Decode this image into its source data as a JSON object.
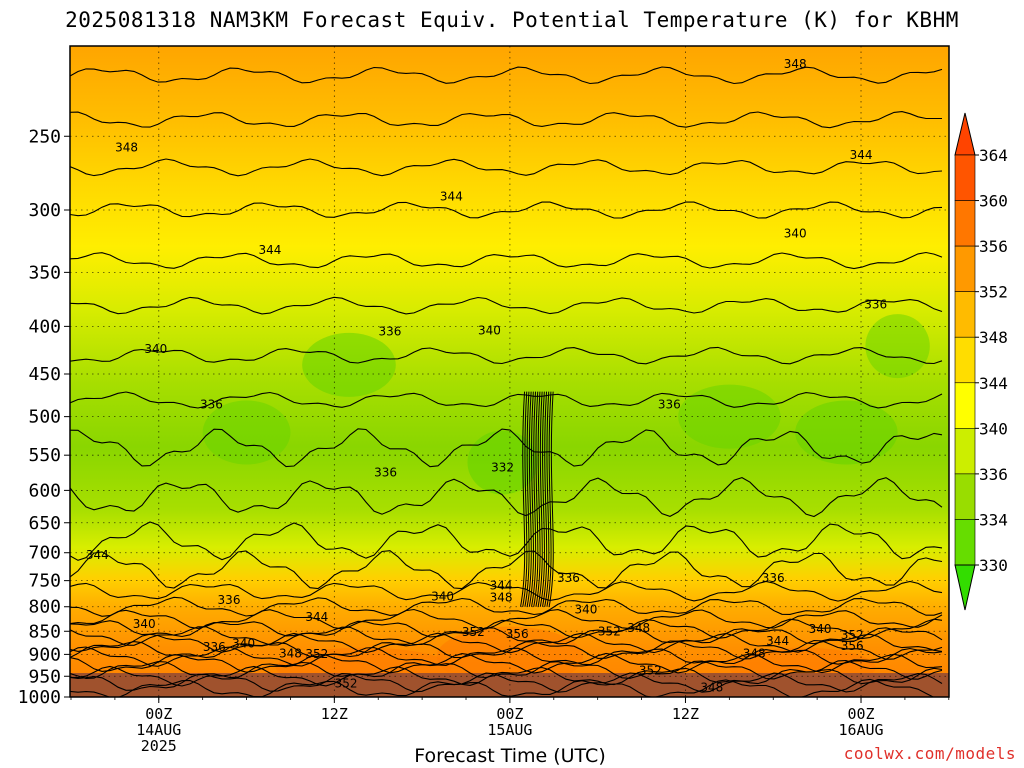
{
  "title": "2025081318 NAM3KM Forecast Equiv. Potential Temperature (K) for KBHM",
  "credit": "coolwx.com/models",
  "chart_data": {
    "type": "heatmap",
    "title": "2025081318 NAM3KM Forecast Equiv. Potential Temperature (K) for KBHM",
    "xlabel": "Forecast Time (UTC)",
    "ylabel": "",
    "y_scale": "pressure (top 200 to bottom 1000, log)",
    "yticks": [
      250,
      300,
      350,
      400,
      450,
      500,
      550,
      600,
      650,
      700,
      750,
      800,
      850,
      900,
      950,
      1000
    ],
    "xticks": [
      {
        "hour": 6,
        "lines": [
          "00Z",
          "14AUG",
          "2025"
        ]
      },
      {
        "hour": 18,
        "lines": [
          "12Z"
        ]
      },
      {
        "hour": 30,
        "lines": [
          "00Z",
          "15AUG"
        ]
      },
      {
        "hour": 42,
        "lines": [
          "12Z"
        ]
      },
      {
        "hour": 54,
        "lines": [
          "00Z",
          "16AUG"
        ]
      }
    ],
    "x_range_hours": [
      0,
      60
    ],
    "grid": true,
    "colorbar": {
      "levels": [
        330,
        334,
        336,
        340,
        344,
        348,
        352,
        356,
        360,
        364
      ],
      "colors": [
        "#33dd00",
        "#66dd00",
        "#99dd00",
        "#ccee00",
        "#ffff00",
        "#ffdd00",
        "#ffbb00",
        "#ff9900",
        "#ff7700",
        "#ff5500"
      ]
    },
    "contour_labels": [
      {
        "hour": 49.5,
        "p": 209,
        "text": "348"
      },
      {
        "hour": 3.8,
        "p": 257,
        "text": "348"
      },
      {
        "hour": 54,
        "p": 262,
        "text": "344"
      },
      {
        "hour": 26,
        "p": 290,
        "text": "344"
      },
      {
        "hour": 49.5,
        "p": 318,
        "text": "340"
      },
      {
        "hour": 13.6,
        "p": 331,
        "text": "344"
      },
      {
        "hour": 55,
        "p": 379,
        "text": "336"
      },
      {
        "hour": 21.8,
        "p": 405,
        "text": "336"
      },
      {
        "hour": 28.6,
        "p": 404,
        "text": "340"
      },
      {
        "hour": 5.8,
        "p": 423,
        "text": "340"
      },
      {
        "hour": 9.6,
        "p": 485,
        "text": "336"
      },
      {
        "hour": 40.9,
        "p": 485,
        "text": "336"
      },
      {
        "hour": 21.5,
        "p": 574,
        "text": "336"
      },
      {
        "hour": 29.5,
        "p": 567,
        "text": "332"
      },
      {
        "hour": 1.8,
        "p": 704,
        "text": "344"
      },
      {
        "hour": 34,
        "p": 745,
        "text": "336"
      },
      {
        "hour": 48,
        "p": 745,
        "text": "336"
      },
      {
        "hour": 29.4,
        "p": 759,
        "text": "344"
      },
      {
        "hour": 25.4,
        "p": 780,
        "text": "340"
      },
      {
        "hour": 29.4,
        "p": 782,
        "text": "348"
      },
      {
        "hour": 10.8,
        "p": 787,
        "text": "336"
      },
      {
        "hour": 16.8,
        "p": 821,
        "text": "344"
      },
      {
        "hour": 35.2,
        "p": 805,
        "text": "340"
      },
      {
        "hour": 5,
        "p": 835,
        "text": "340"
      },
      {
        "hour": 38.8,
        "p": 843,
        "text": "348"
      },
      {
        "hour": 27.5,
        "p": 852,
        "text": "352"
      },
      {
        "hour": 30.5,
        "p": 856,
        "text": "356"
      },
      {
        "hour": 36.8,
        "p": 850,
        "text": "352"
      },
      {
        "hour": 51.2,
        "p": 845,
        "text": "340"
      },
      {
        "hour": 53.4,
        "p": 858,
        "text": "352"
      },
      {
        "hour": 48.3,
        "p": 871,
        "text": "344"
      },
      {
        "hour": 53.4,
        "p": 881,
        "text": "356"
      },
      {
        "hour": 9.8,
        "p": 884,
        "text": "336"
      },
      {
        "hour": 11.8,
        "p": 876,
        "text": "340"
      },
      {
        "hour": 15,
        "p": 898,
        "text": "348"
      },
      {
        "hour": 16.8,
        "p": 899,
        "text": "352"
      },
      {
        "hour": 46.7,
        "p": 898,
        "text": "348"
      },
      {
        "hour": 39.6,
        "p": 937,
        "text": "352"
      },
      {
        "hour": 18.8,
        "p": 967,
        "text": "352"
      },
      {
        "hour": 43.8,
        "p": 977,
        "text": "348"
      }
    ]
  },
  "colors": {
    "frame": "#000000",
    "ground": "#a0522d",
    "credit": "#e0302a"
  }
}
